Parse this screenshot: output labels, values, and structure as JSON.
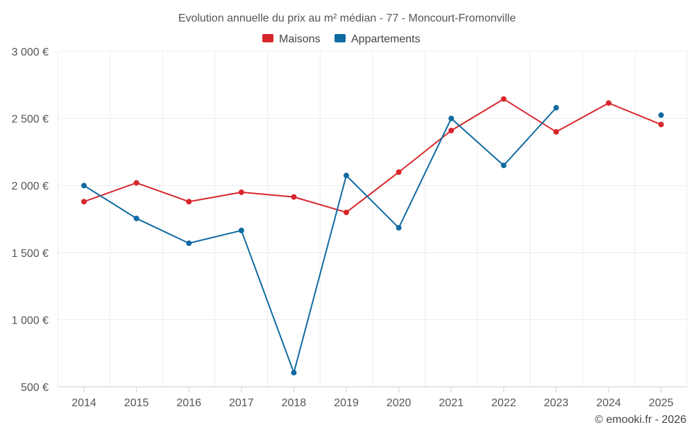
{
  "chart_data": {
    "type": "line",
    "title": "Evolution annuelle du prix au m² médian - 77 - Moncourt-Fromonville",
    "categories": [
      "2014",
      "2015",
      "2016",
      "2017",
      "2018",
      "2019",
      "2020",
      "2021",
      "2022",
      "2023",
      "2024",
      "2025"
    ],
    "series": [
      {
        "name": "Maisons",
        "color": "#d7262b",
        "values": [
          1880,
          2020,
          1880,
          1950,
          1915,
          1800,
          2100,
          2410,
          2645,
          2400,
          2615,
          2455
        ]
      },
      {
        "name": "Appartements",
        "color": "#0f6aa1",
        "values": [
          2000,
          1755,
          1570,
          1665,
          605,
          2075,
          1685,
          2500,
          2150,
          2580,
          null,
          2525
        ]
      }
    ],
    "ylim": [
      500,
      3000
    ],
    "yticks": [
      500,
      1000,
      1500,
      2000,
      2500,
      3000
    ],
    "ytick_labels": [
      "500 €",
      "1 000 €",
      "1 500 €",
      "2 000 €",
      "2 500 €",
      "3 000 €"
    ],
    "grid": true,
    "legend_position": "top-center",
    "xlabel": "",
    "ylabel": ""
  },
  "credit": "© emooki.fr - 2026"
}
